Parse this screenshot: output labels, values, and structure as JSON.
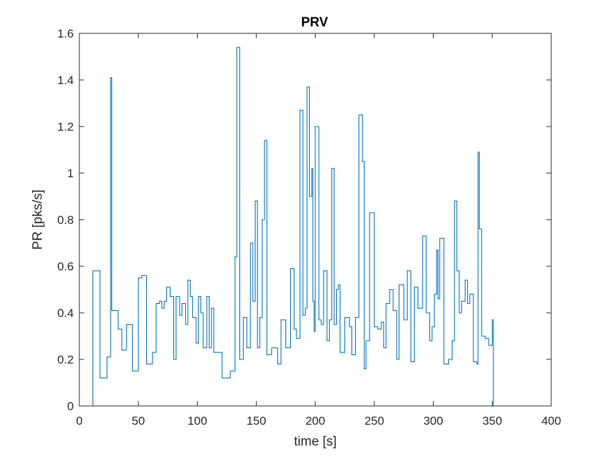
{
  "chart_data": {
    "type": "line",
    "title": "PRV",
    "xlabel": "time [s]",
    "ylabel": "PR [pks/s]",
    "xlim": [
      0,
      400
    ],
    "ylim": [
      0,
      1.6
    ],
    "xticks": [
      0,
      50,
      100,
      150,
      200,
      250,
      300,
      350,
      400
    ],
    "yticks": [
      0,
      0.2,
      0.4,
      0.6,
      0.8,
      1,
      1.2,
      1.4,
      1.6
    ],
    "xtick_labels": [
      "0",
      "50",
      "100",
      "150",
      "200",
      "250",
      "300",
      "350",
      "400"
    ],
    "ytick_labels": [
      "0",
      "0.2",
      "0.4",
      "0.6",
      "0.8",
      "1",
      "1.2",
      "1.4",
      "1.6"
    ],
    "grid": false,
    "step": "post",
    "color": "#0072BD",
    "series": [
      {
        "x": [
          11.5,
          12.5,
          17.5,
          23.5,
          26.5,
          27.5,
          29,
          33,
          36,
          40,
          45,
          50,
          53,
          57,
          62,
          65,
          68,
          70,
          72,
          74,
          77,
          80,
          82,
          85,
          87,
          90,
          92,
          94,
          96,
          99,
          101,
          103,
          105,
          108,
          110,
          112,
          114,
          121,
          128,
          132,
          133.5,
          136,
          139,
          142,
          145,
          147,
          149,
          151,
          153,
          155,
          157,
          159,
          163,
          168,
          171,
          175,
          179,
          182,
          184,
          187,
          189.5,
          191.5,
          193,
          195,
          197,
          198,
          199,
          200,
          203,
          205,
          207,
          210,
          212,
          214,
          216,
          218,
          219.5,
          221,
          225,
          229,
          231,
          234,
          237,
          240,
          241.5,
          243,
          246,
          250,
          253,
          256,
          258,
          260,
          263,
          266,
          269,
          271,
          275,
          278,
          281,
          284,
          287,
          291,
          294,
          297,
          299,
          301,
          303,
          304,
          305.5,
          309,
          313,
          316,
          318,
          320,
          322,
          324,
          327,
          329,
          331,
          334,
          337,
          338,
          339,
          341,
          344,
          347,
          350,
          351,
          352
        ],
        "y": [
          0.58,
          0.58,
          0.12,
          0.21,
          1.41,
          0.41,
          0.41,
          0.33,
          0.24,
          0.35,
          0.15,
          0.55,
          0.56,
          0.18,
          0.23,
          0.44,
          0.45,
          0.42,
          0.45,
          0.51,
          0.47,
          0.2,
          0.47,
          0.39,
          0.44,
          0.35,
          0.54,
          0.47,
          0.38,
          0.27,
          0.47,
          0.4,
          0.25,
          0.47,
          0.25,
          0.42,
          0.23,
          0.12,
          0.15,
          0.64,
          1.54,
          0.2,
          0.38,
          0.25,
          0.7,
          0.45,
          0.88,
          0.25,
          0.38,
          0.8,
          1.14,
          0.22,
          0.25,
          0.18,
          0.37,
          0.25,
          0.59,
          0.33,
          0.29,
          1.27,
          0.39,
          0.42,
          1.37,
          0.9,
          1.02,
          0.45,
          0.32,
          1.2,
          0.37,
          0.35,
          0.58,
          0.28,
          0.37,
          1.02,
          0.35,
          0.5,
          0.52,
          0.23,
          0.38,
          0.34,
          0.22,
          0.38,
          1.25,
          1.05,
          0.16,
          0.28,
          0.83,
          0.34,
          0.33,
          0.36,
          0.25,
          0.44,
          0.5,
          0.41,
          0.2,
          0.52,
          0.37,
          0.58,
          0.19,
          0.51,
          0.42,
          0.73,
          0.4,
          0.28,
          0.34,
          0.48,
          0.67,
          0.46,
          0.72,
          0.18,
          0.2,
          0.28,
          0.88,
          0.58,
          0.4,
          0.45,
          0.54,
          0.44,
          0.48,
          0.19,
          0.18,
          1.09,
          0.76,
          0.3,
          0.29,
          0.26,
          0.37,
          0.0,
          0.0
        ]
      }
    ]
  }
}
